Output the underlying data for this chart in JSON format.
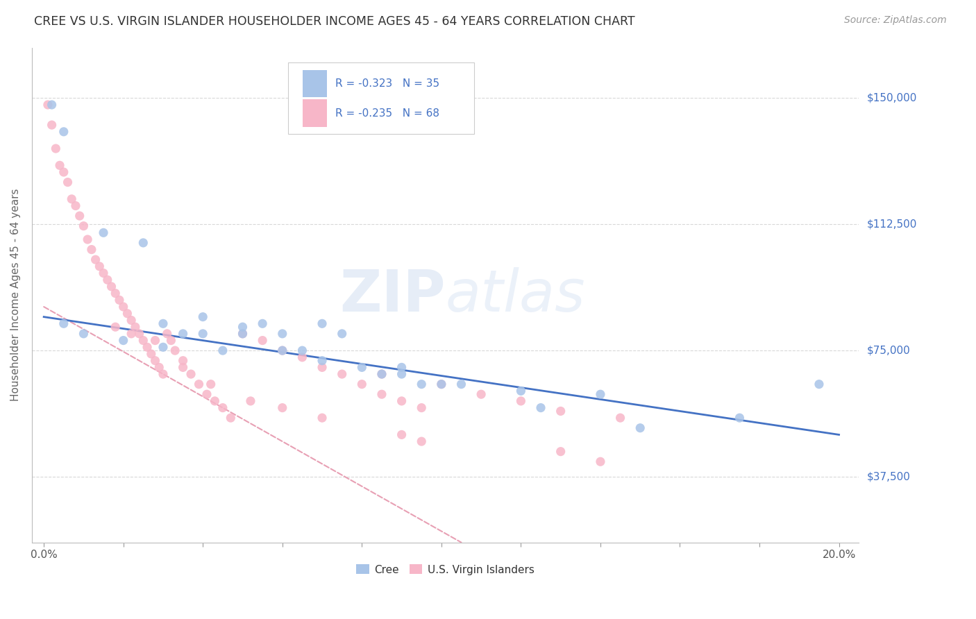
{
  "title": "CREE VS U.S. VIRGIN ISLANDER HOUSEHOLDER INCOME AGES 45 - 64 YEARS CORRELATION CHART",
  "source": "Source: ZipAtlas.com",
  "ylabel": "Householder Income Ages 45 - 64 years",
  "ytick_labels": [
    "$37,500",
    "$75,000",
    "$112,500",
    "$150,000"
  ],
  "ytick_values": [
    37500,
    75000,
    112500,
    150000
  ],
  "ylim": [
    18000,
    165000
  ],
  "xlim": [
    -0.3,
    20.5
  ],
  "watermark": "ZIPatlas",
  "cree_R": "-0.323",
  "cree_N": "35",
  "virgin_R": "-0.235",
  "virgin_N": "68",
  "cree_color": "#a8c4e8",
  "virgin_color": "#f7b6c8",
  "cree_line_color": "#4472c4",
  "virgin_line_color": "#e8a0b0",
  "cree_x": [
    0.2,
    0.5,
    1.5,
    2.5,
    3.0,
    3.5,
    4.0,
    5.0,
    5.5,
    6.0,
    6.5,
    7.0,
    7.5,
    8.5,
    9.0,
    9.5,
    10.5,
    12.0,
    14.0,
    17.5,
    19.5
  ],
  "cree_y": [
    148000,
    140000,
    110000,
    107000,
    83000,
    80000,
    85000,
    80000,
    83000,
    80000,
    75000,
    83000,
    80000,
    68000,
    70000,
    65000,
    65000,
    63000,
    62000,
    55000,
    65000
  ],
  "cree_x2": [
    0.5,
    1.0,
    2.0,
    3.0,
    4.0,
    4.5,
    5.0,
    6.0,
    7.0,
    8.0,
    9.0,
    10.0,
    12.5,
    15.0
  ],
  "cree_y2": [
    83000,
    80000,
    78000,
    76000,
    80000,
    75000,
    82000,
    75000,
    72000,
    70000,
    68000,
    65000,
    58000,
    52000
  ],
  "virgin_x": [
    0.1,
    0.2,
    0.3,
    0.4,
    0.5,
    0.6,
    0.7,
    0.8,
    0.9,
    1.0,
    1.1,
    1.2,
    1.3,
    1.4,
    1.5,
    1.6,
    1.7,
    1.8,
    1.9,
    2.0,
    2.1,
    2.2,
    2.3,
    2.4,
    2.5,
    2.6,
    2.7,
    2.8,
    2.9,
    3.0,
    3.1,
    3.2,
    3.3,
    3.5,
    3.7,
    3.9,
    4.1,
    4.3,
    4.5,
    4.7,
    5.0,
    5.5,
    6.0,
    6.5,
    7.0,
    7.5,
    8.0,
    8.5,
    9.0,
    9.5,
    1.8,
    2.2,
    2.8,
    3.5,
    4.2,
    5.2,
    6.0,
    7.0,
    8.5,
    10.0,
    11.0,
    12.0,
    13.0,
    14.5,
    9.0,
    9.5,
    13.0,
    14.0
  ],
  "virgin_y": [
    148000,
    142000,
    135000,
    130000,
    128000,
    125000,
    120000,
    118000,
    115000,
    112000,
    108000,
    105000,
    102000,
    100000,
    98000,
    96000,
    94000,
    92000,
    90000,
    88000,
    86000,
    84000,
    82000,
    80000,
    78000,
    76000,
    74000,
    72000,
    70000,
    68000,
    80000,
    78000,
    75000,
    72000,
    68000,
    65000,
    62000,
    60000,
    58000,
    55000,
    80000,
    78000,
    75000,
    73000,
    70000,
    68000,
    65000,
    62000,
    60000,
    58000,
    82000,
    80000,
    78000,
    70000,
    65000,
    60000,
    58000,
    55000,
    68000,
    65000,
    62000,
    60000,
    57000,
    55000,
    50000,
    48000,
    45000,
    42000
  ],
  "cree_trend_x": [
    0.0,
    20.0
  ],
  "cree_trend_y": [
    85000,
    50000
  ],
  "virgin_trend_x": [
    0.0,
    10.5
  ],
  "virgin_trend_y": [
    88000,
    18000
  ]
}
